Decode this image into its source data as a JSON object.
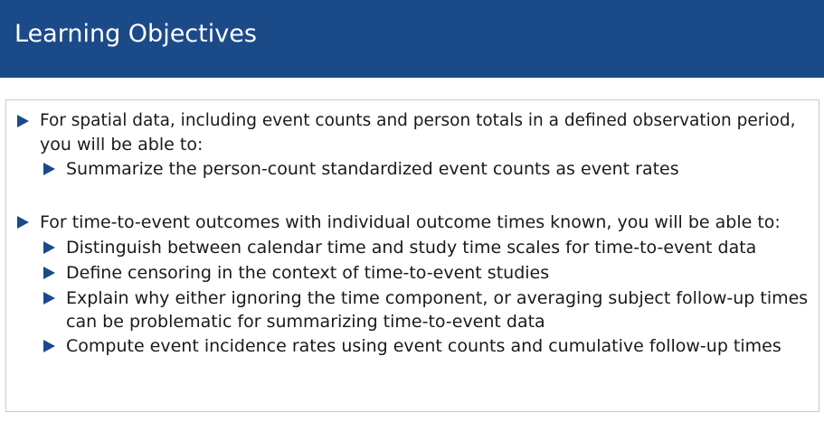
{
  "slide": {
    "title": "Learning Objectives",
    "colors": {
      "title_bar": "#1b4a89",
      "title_text": "#ffffff",
      "bullet": "#1b4a89",
      "body_text": "#1a1a1a",
      "box_border": "#c9c9c9"
    },
    "objectives": [
      {
        "text": "For spatial data, including event counts and person totals in a defined observation period,",
        "continuation": "you will be able to:",
        "subitems": [
          {
            "text": "Summarize the person-count standardized event counts as event rates"
          }
        ]
      },
      {
        "text": "For time-to-event outcomes with individual outcome times known, you will be able to:",
        "subitems": [
          {
            "text": "Distinguish between calendar time and study time scales for time-to-event data"
          },
          {
            "text": "Define censoring in the context of time-to-event studies"
          },
          {
            "text": "Explain why either ignoring the time component, or averaging subject follow-up times",
            "continuation": "can be problematic for summarizing time-to-event data"
          },
          {
            "text": "Compute event incidence rates using event counts and cumulative follow-up times"
          }
        ]
      }
    ]
  }
}
